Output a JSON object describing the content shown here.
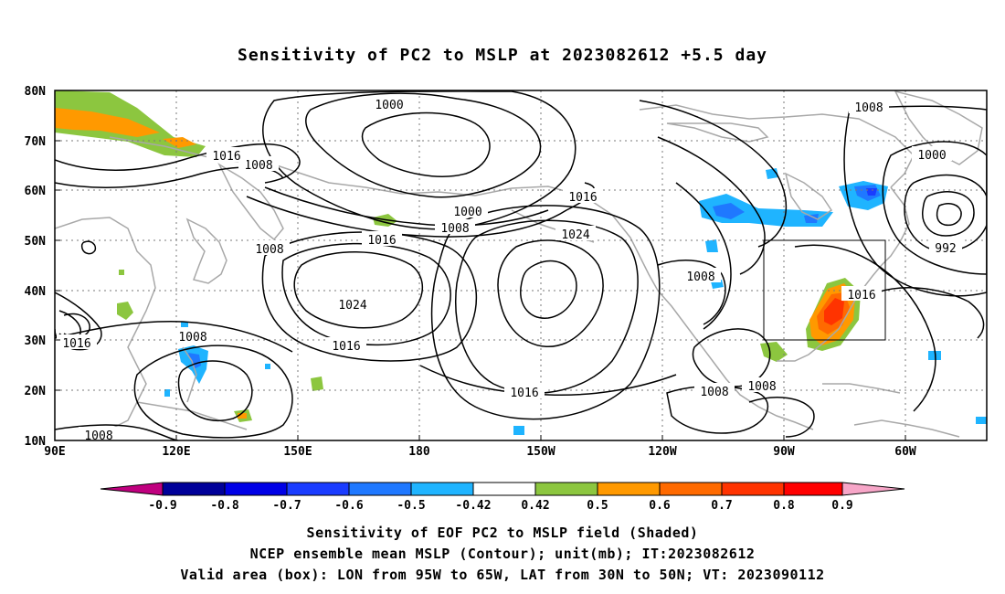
{
  "title": "Sensitivity of PC2 to MSLP at 2023082612 +5.5 day",
  "captions": {
    "line1": "Sensitivity of EOF PC2 to MSLP field (Shaded)",
    "line2": "NCEP ensemble mean MSLP (Contour); unit(mb); IT:2023082612",
    "line3": "Valid area (box): LON from 95W to 65W, LAT from 30N to 50N; VT: 2023090112"
  },
  "axes": {
    "lat_labels": [
      "80N",
      "70N",
      "60N",
      "50N",
      "40N",
      "30N",
      "20N",
      "10N"
    ],
    "lon_labels": [
      "90E",
      "120E",
      "150E",
      "180",
      "150W",
      "120W",
      "90W",
      "60W"
    ]
  },
  "contour_labels": [
    {
      "id": "c1000a",
      "text": "1000"
    },
    {
      "id": "c1008a",
      "text": "1008"
    },
    {
      "id": "c1016a",
      "text": "1016"
    },
    {
      "id": "c1008b",
      "text": "1008"
    },
    {
      "id": "c1000b",
      "text": "1000"
    },
    {
      "id": "c1016b",
      "text": "1016"
    },
    {
      "id": "c1008c",
      "text": "1008"
    },
    {
      "id": "c1008d",
      "text": "1008"
    },
    {
      "id": "c1016c",
      "text": "1016"
    },
    {
      "id": "c1024a",
      "text": "1024"
    },
    {
      "id": "c1024b",
      "text": "1024"
    },
    {
      "id": "c1000c",
      "text": "1000"
    },
    {
      "id": "c992",
      "text": "992"
    },
    {
      "id": "c1008e",
      "text": "1008"
    },
    {
      "id": "c1016d",
      "text": "1016"
    },
    {
      "id": "c1016e",
      "text": "1016"
    },
    {
      "id": "c1008f",
      "text": "1008"
    },
    {
      "id": "c1016f",
      "text": "1016"
    },
    {
      "id": "c1016g",
      "text": "1016"
    },
    {
      "id": "c1008g",
      "text": "1008"
    },
    {
      "id": "c1008h",
      "text": "1008"
    },
    {
      "id": "c1008i",
      "text": "1008"
    }
  ],
  "colorbar": {
    "labels": [
      "-0.9",
      "-0.8",
      "-0.7",
      "-0.6",
      "-0.5",
      "-0.42",
      "0.42",
      "0.5",
      "0.6",
      "0.7",
      "0.8",
      "0.9"
    ],
    "colors": {
      "below": "#c0007f",
      "bins": [
        "#000099",
        "#0000e6",
        "#1a3cff",
        "#1f78ff",
        "#1fb4ff",
        "#ffffff",
        "#8cc63f",
        "#ff9900",
        "#ff6a00",
        "#ff3300",
        "#ff0000"
      ],
      "above": "#f7a6c8"
    }
  },
  "valid_box": {
    "lon_w": "95W",
    "lon_e": "65W",
    "lat_s": "30N",
    "lat_n": "50N"
  }
}
